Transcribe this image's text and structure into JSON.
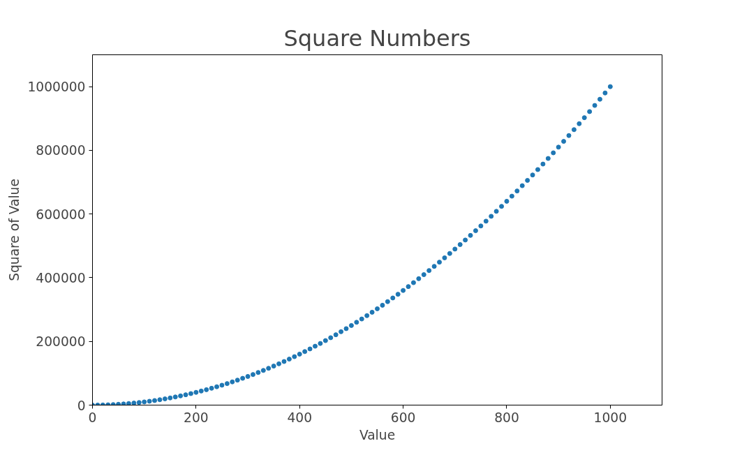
{
  "chart_data": {
    "type": "scatter",
    "title": "Square Numbers",
    "xlabel": "Value",
    "ylabel": "Square of Value",
    "x": [
      0,
      10,
      20,
      30,
      40,
      50,
      60,
      70,
      80,
      90,
      100,
      110,
      120,
      130,
      140,
      150,
      160,
      170,
      180,
      190,
      200,
      210,
      220,
      230,
      240,
      250,
      260,
      270,
      280,
      290,
      300,
      310,
      320,
      330,
      340,
      350,
      360,
      370,
      380,
      390,
      400,
      410,
      420,
      430,
      440,
      450,
      460,
      470,
      480,
      490,
      500,
      510,
      520,
      530,
      540,
      550,
      560,
      570,
      580,
      590,
      600,
      610,
      620,
      630,
      640,
      650,
      660,
      670,
      680,
      690,
      700,
      710,
      720,
      730,
      740,
      750,
      760,
      770,
      780,
      790,
      800,
      810,
      820,
      830,
      840,
      850,
      860,
      870,
      880,
      890,
      900,
      910,
      920,
      930,
      940,
      950,
      960,
      970,
      980,
      990,
      1000
    ],
    "series": [
      {
        "color": "#1f77b4",
        "values": [
          0,
          100,
          400,
          900,
          1600,
          2500,
          3600,
          4900,
          6400,
          8100,
          10000,
          12100,
          14400,
          16900,
          19600,
          22500,
          25600,
          28900,
          32400,
          36100,
          40000,
          44100,
          48400,
          52900,
          57600,
          62500,
          67600,
          72900,
          78400,
          84100,
          90000,
          96100,
          102400,
          108900,
          115600,
          122500,
          129600,
          136900,
          144400,
          152100,
          160000,
          168100,
          176400,
          184900,
          193600,
          202500,
          211600,
          220900,
          230400,
          240100,
          250000,
          260100,
          270400,
          280900,
          291600,
          302500,
          313600,
          324900,
          336400,
          348100,
          360000,
          372100,
          384400,
          396900,
          409600,
          422500,
          435600,
          448900,
          462400,
          476100,
          490000,
          504100,
          518400,
          532900,
          547600,
          562500,
          577600,
          592900,
          608400,
          624100,
          640000,
          656100,
          672400,
          688900,
          705600,
          722500,
          739600,
          756900,
          774400,
          792100,
          810000,
          828100,
          846400,
          864900,
          883600,
          902500,
          921600,
          940900,
          960400,
          980100,
          1000000
        ]
      }
    ],
    "xlim": [
      0,
      1100
    ],
    "ylim": [
      0,
      1100000
    ],
    "xticks": [
      0,
      200,
      400,
      600,
      800,
      1000
    ],
    "yticks": [
      0,
      200000,
      400000,
      600000,
      800000,
      1000000
    ],
    "grid": false,
    "marker": "circle"
  }
}
